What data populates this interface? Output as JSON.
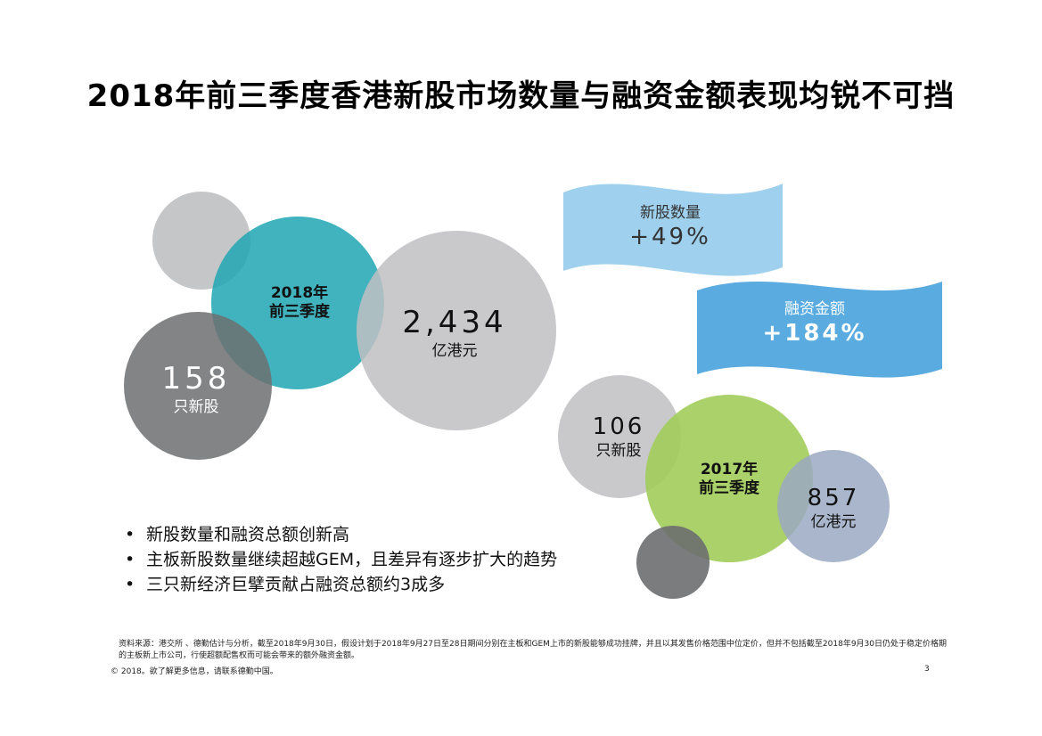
{
  "title": "2018年前三季度香港新股市场数量与融资金额表现均锐不可挡",
  "year2018": {
    "label_line1": "2018年",
    "label_line2": "前三季度",
    "ipo_count": "158",
    "ipo_count_unit": "只新股",
    "funds": "2,434",
    "funds_unit": "亿港元"
  },
  "year2017": {
    "label_line1": "2017年",
    "label_line2": "前三季度",
    "ipo_count": "106",
    "ipo_count_unit": "只新股",
    "funds": "857",
    "funds_unit": "亿港元"
  },
  "banners": {
    "count_label": "新股数量",
    "count_value": "+49%",
    "funds_label": "融资金额",
    "funds_value": "+184%"
  },
  "bullets": [
    "新股数量和融资总额创新高",
    "主板新股数量继续超越GEM，且差异有逐步扩大的趋势",
    "三只新经济巨擘贡献占融资总额约3成多"
  ],
  "footnote": "资料来源：港交所 、德勤估计与分析，截至2018年9月30日，假设计划于2018年9月27日至28日期间分别在主板和GEM上市的新股能够成功挂牌，并且以其发售价格范围中位定价，但并不包括截至2018年9月30日仍处于稳定价格期的主板新上市公司，行使超额配售权而可能会带来的额外融资金额。",
  "copyright": "© 2018。欲了解更多信息，请联系德勤中国。",
  "page_number": "3",
  "colors": {
    "teal": "#1fa6b3",
    "light_gray": "#bfc0c2",
    "dark_gray": "#6d6e70",
    "green": "#a2cd5a",
    "slate": "#9aa9c2",
    "banner_light": "#9fd0ee",
    "banner_dark": "#5aabe0"
  }
}
